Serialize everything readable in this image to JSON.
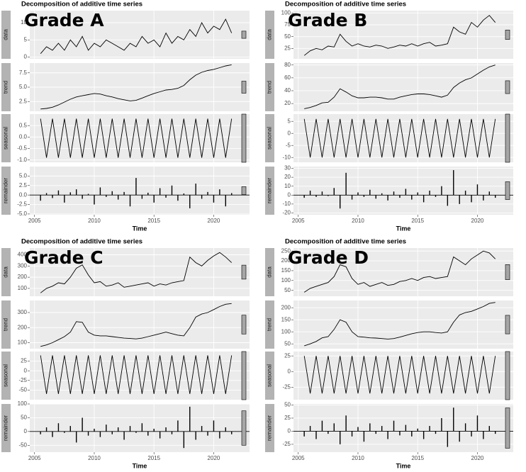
{
  "chart_data": [
    {
      "type": "line",
      "title": "Decomposition of additive time series",
      "label": "Grade A",
      "xlabel": "Time",
      "x": [
        2005.5,
        2006,
        2006.5,
        2007,
        2007.5,
        2008,
        2008.5,
        2009,
        2009.5,
        2010,
        2010.5,
        2011,
        2011.5,
        2012,
        2012.5,
        2013,
        2013.5,
        2014,
        2014.5,
        2015,
        2015.5,
        2016,
        2016.5,
        2017,
        2017.5,
        2018,
        2018.5,
        2019,
        2019.5,
        2020,
        2020.5,
        2021,
        2021.5
      ],
      "xlim": [
        2004.6,
        2023.0
      ],
      "xticks": [
        2005,
        2010,
        2015,
        2020
      ],
      "panels": [
        {
          "name": "data",
          "type": "line",
          "ylim": [
            -0.5,
            13.5
          ],
          "yticks": [
            0,
            5,
            10
          ],
          "values": [
            1,
            3,
            2,
            4,
            2,
            5,
            3,
            6,
            2,
            4,
            3,
            5,
            4,
            3,
            2,
            4,
            3,
            6,
            4,
            5,
            3,
            7,
            4,
            6,
            5,
            8,
            6,
            10,
            7,
            9,
            8,
            11,
            7
          ]
        },
        {
          "name": "trend",
          "type": "line",
          "ylim": [
            0.8,
            9.2
          ],
          "yticks": [
            2.5,
            {
              "value": 5,
              "label": "5.0"
            },
            7.5
          ],
          "values": [
            1.2,
            1.3,
            1.5,
            1.9,
            2.4,
            2.9,
            3.3,
            3.5,
            3.7,
            3.9,
            3.8,
            3.5,
            3.3,
            3.0,
            2.8,
            2.6,
            2.7,
            3.1,
            3.5,
            3.9,
            4.2,
            4.5,
            4.6,
            4.8,
            5.3,
            6.3,
            7.1,
            7.6,
            7.9,
            8.1,
            8.4,
            8.7,
            8.9
          ]
        },
        {
          "name": "seasonal",
          "type": "line",
          "ylim": [
            -1.1,
            1.0
          ],
          "yticks": [
            {
              "value": -1,
              "label": "-1.0"
            },
            -0.5,
            {
              "value": 0,
              "label": "0.0"
            },
            0.5
          ],
          "values": [
            0.8,
            -0.9,
            0.8,
            -0.9,
            0.8,
            -0.9,
            0.8,
            -0.9,
            0.8,
            -0.9,
            0.8,
            -0.9,
            0.8,
            -0.9,
            0.8,
            -0.9,
            0.8,
            -0.9,
            0.8,
            -0.9,
            0.8,
            -0.9,
            0.8,
            -0.9,
            0.8,
            -0.9,
            0.8,
            -0.9,
            0.8,
            -0.9,
            0.8,
            -0.9,
            0.8
          ]
        },
        {
          "name": "remainder",
          "type": "bar",
          "ylim": [
            -5.2,
            7.5
          ],
          "yticks": [
            {
              "value": -5,
              "label": "-5.0"
            },
            -2.5,
            {
              "value": 0,
              "label": "0.0"
            },
            2.5,
            {
              "value": 5,
              "label": "5.0"
            }
          ],
          "values": [
            -1.5,
            0.5,
            -0.8,
            1.2,
            -2,
            0.7,
            1.5,
            -1,
            0.3,
            -2.5,
            2,
            -0.5,
            1,
            -1.2,
            0.8,
            -3,
            4.5,
            -1,
            0.6,
            -2,
            1.8,
            -0.7,
            2.5,
            -1.5,
            0.4,
            -3.5,
            3,
            -1,
            0.8,
            -2,
            1.5,
            -3,
            0.5
          ]
        }
      ]
    },
    {
      "type": "line",
      "title": "Decomposition of additive time series",
      "label": "Grade B",
      "xlabel": "Time",
      "x": [
        2005.5,
        2006,
        2006.5,
        2007,
        2007.5,
        2008,
        2008.5,
        2009,
        2009.5,
        2010,
        2010.5,
        2011,
        2011.5,
        2012,
        2012.5,
        2013,
        2013.5,
        2014,
        2014.5,
        2015,
        2015.5,
        2016,
        2016.5,
        2017,
        2017.5,
        2018,
        2018.5,
        2019,
        2019.5,
        2020,
        2020.5,
        2021,
        2021.5
      ],
      "xlim": [
        2004.6,
        2023.0
      ],
      "xticks": [
        2005,
        2010,
        2015,
        2020
      ],
      "panels": [
        {
          "name": "data",
          "type": "line",
          "ylim": [
            3,
            105
          ],
          "yticks": [
            25,
            50,
            75,
            100
          ],
          "values": [
            10,
            20,
            25,
            22,
            30,
            28,
            55,
            40,
            30,
            35,
            30,
            28,
            32,
            30,
            25,
            28,
            32,
            30,
            35,
            30,
            35,
            38,
            30,
            32,
            35,
            70,
            60,
            55,
            80,
            70,
            85,
            95,
            80
          ]
        },
        {
          "name": "trend",
          "type": "line",
          "ylim": [
            8,
            83
          ],
          "yticks": [
            20,
            40,
            60,
            80
          ],
          "values": [
            12,
            14,
            17,
            21,
            22,
            30,
            43,
            38,
            32,
            29,
            29,
            30,
            30,
            29,
            27,
            27,
            30,
            32,
            34,
            35,
            35,
            34,
            32,
            30,
            33,
            45,
            52,
            57,
            60,
            66,
            72,
            77,
            80
          ]
        },
        {
          "name": "seasonal",
          "type": "line",
          "ylim": [
            -12,
            8
          ],
          "yticks": [
            -10,
            -5,
            0,
            5
          ],
          "values": [
            6,
            -10,
            6,
            -10,
            6,
            -10,
            6,
            -10,
            6,
            -10,
            6,
            -10,
            6,
            -10,
            6,
            -10,
            6,
            -10,
            6,
            -10,
            6,
            -10,
            6,
            -10,
            6,
            -10,
            6,
            -10,
            6,
            -10,
            6,
            -10,
            6
          ]
        },
        {
          "name": "remainder",
          "type": "bar",
          "ylim": [
            -22,
            32
          ],
          "yticks": [
            -20,
            -10,
            0,
            10,
            20,
            30
          ],
          "values": [
            -3,
            5,
            -2,
            4,
            -1,
            8,
            -15,
            25,
            -5,
            3,
            -2,
            6,
            -4,
            2,
            -6,
            4,
            -3,
            7,
            -5,
            3,
            -8,
            5,
            -2,
            10,
            -12,
            28,
            -10,
            5,
            -8,
            12,
            -6,
            4,
            -3
          ]
        }
      ]
    },
    {
      "type": "line",
      "title": "Decomposition of additive time series",
      "label": "Grade C",
      "xlabel": "Time",
      "x": [
        2005.5,
        2006,
        2006.5,
        2007,
        2007.5,
        2008,
        2008.5,
        2009,
        2009.5,
        2010,
        2010.5,
        2011,
        2011.5,
        2012,
        2012.5,
        2013,
        2013.5,
        2014,
        2014.5,
        2015,
        2015.5,
        2016,
        2016.5,
        2017,
        2017.5,
        2018,
        2018.5,
        2019,
        2019.5,
        2020,
        2020.5,
        2021,
        2021.5
      ],
      "xlim": [
        2004.6,
        2023.0
      ],
      "xticks": [
        2005,
        2010,
        2015,
        2020
      ],
      "panels": [
        {
          "name": "data",
          "type": "line",
          "ylim": [
            30,
            460
          ],
          "yticks": [
            100,
            200,
            300,
            400
          ],
          "values": [
            60,
            100,
            120,
            150,
            140,
            200,
            280,
            310,
            220,
            150,
            160,
            120,
            130,
            150,
            110,
            120,
            130,
            140,
            150,
            120,
            140,
            130,
            150,
            160,
            170,
            380,
            330,
            300,
            350,
            390,
            420,
            380,
            330
          ]
        },
        {
          "name": "trend",
          "type": "line",
          "ylim": [
            60,
            380
          ],
          "yticks": [
            100,
            200,
            300
          ],
          "values": [
            75,
            85,
            100,
            120,
            140,
            170,
            240,
            235,
            170,
            150,
            145,
            145,
            140,
            135,
            130,
            128,
            125,
            130,
            140,
            150,
            160,
            170,
            160,
            150,
            145,
            200,
            270,
            290,
            300,
            320,
            340,
            355,
            360
          ]
        },
        {
          "name": "seasonal",
          "type": "line",
          "ylim": [
            -75,
            50
          ],
          "yticks": [
            -50,
            -25,
            0,
            25
          ],
          "values": [
            40,
            -60,
            40,
            -60,
            40,
            -60,
            40,
            -60,
            40,
            -60,
            40,
            -60,
            40,
            -60,
            40,
            -60,
            40,
            -60,
            40,
            -60,
            40,
            -60,
            40,
            -60,
            40,
            -60,
            40,
            -60,
            40,
            -60,
            40,
            -60,
            40
          ]
        },
        {
          "name": "remainder",
          "type": "bar",
          "ylim": [
            -75,
            100
          ],
          "yticks": [
            -50,
            0,
            50,
            100
          ],
          "values": [
            -10,
            15,
            -20,
            30,
            -5,
            20,
            -40,
            50,
            -15,
            10,
            -20,
            25,
            -10,
            15,
            -30,
            20,
            -5,
            30,
            -15,
            10,
            -25,
            15,
            -10,
            40,
            -60,
            90,
            -30,
            20,
            -15,
            40,
            -25,
            15,
            -10
          ]
        }
      ]
    },
    {
      "type": "line",
      "title": "Decomposition of additive time series",
      "label": "Grade D",
      "xlabel": "Time",
      "x": [
        2005.5,
        2006,
        2006.5,
        2007,
        2007.5,
        2008,
        2008.5,
        2009,
        2009.5,
        2010,
        2010.5,
        2011,
        2011.5,
        2012,
        2012.5,
        2013,
        2013.5,
        2014,
        2014.5,
        2015,
        2015.5,
        2016,
        2016.5,
        2017,
        2017.5,
        2018,
        2018.5,
        2019,
        2019.5,
        2020,
        2020.5,
        2021,
        2021.5
      ],
      "xlim": [
        2004.6,
        2023.0
      ],
      "xticks": [
        2005,
        2010,
        2015,
        2020
      ],
      "panels": [
        {
          "name": "data",
          "type": "line",
          "ylim": [
            20,
            265
          ],
          "yticks": [
            50,
            100,
            150,
            200,
            250
          ],
          "values": [
            40,
            60,
            70,
            80,
            90,
            120,
            180,
            170,
            110,
            80,
            90,
            70,
            80,
            90,
            75,
            80,
            95,
            100,
            110,
            100,
            115,
            120,
            110,
            115,
            120,
            220,
            200,
            180,
            210,
            230,
            250,
            240,
            210
          ]
        },
        {
          "name": "trend",
          "type": "line",
          "ylim": [
            30,
            230
          ],
          "yticks": [
            50,
            100,
            150,
            200
          ],
          "values": [
            42,
            50,
            60,
            75,
            80,
            110,
            150,
            140,
            100,
            80,
            78,
            75,
            74,
            72,
            70,
            72,
            78,
            85,
            92,
            97,
            100,
            100,
            97,
            95,
            100,
            140,
            170,
            180,
            185,
            195,
            205,
            218,
            222
          ]
        },
        {
          "name": "seasonal",
          "type": "line",
          "ylim": [
            -45,
            32
          ],
          "yticks": [
            -25,
            0,
            25
          ],
          "values": [
            25,
            -35,
            25,
            -35,
            25,
            -35,
            25,
            -35,
            25,
            -35,
            25,
            -35,
            25,
            -35,
            25,
            -35,
            25,
            -35,
            25,
            -35,
            25,
            -35,
            25,
            -35,
            25,
            -35,
            25,
            -35,
            25,
            -35,
            25,
            -35,
            25
          ]
        },
        {
          "name": "remainder",
          "type": "bar",
          "ylim": [
            -40,
            52
          ],
          "yticks": [
            -25,
            0,
            25,
            50
          ],
          "values": [
            -10,
            10,
            -15,
            20,
            -5,
            15,
            -25,
            30,
            -10,
            8,
            -20,
            15,
            -5,
            10,
            -15,
            20,
            -8,
            12,
            -10,
            5,
            -15,
            10,
            -5,
            25,
            -30,
            45,
            -20,
            15,
            -10,
            30,
            -15,
            10,
            -5
          ]
        }
      ]
    }
  ]
}
